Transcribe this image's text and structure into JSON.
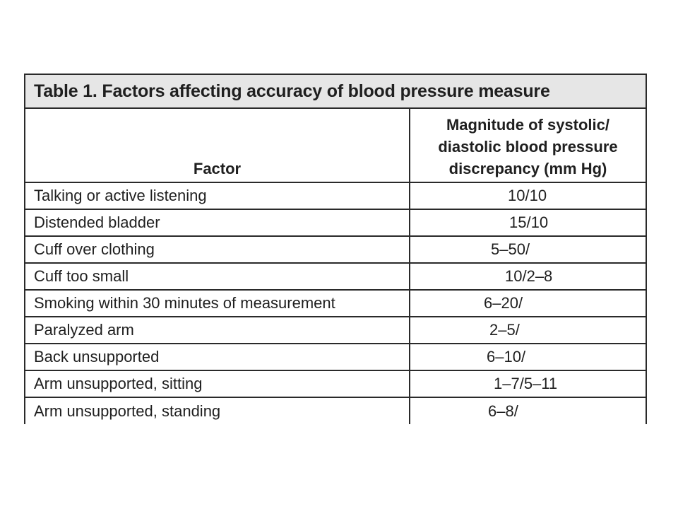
{
  "table": {
    "title": "Table 1. Factors affecting accuracy of blood pressure measure",
    "headers": {
      "factor": "Factor",
      "magnitude_lines": [
        "Magnitude of systolic/",
        "diastolic blood pressure",
        "discrepancy (mm Hg)"
      ]
    },
    "rows": [
      {
        "factor": "Talking or active listening",
        "magnitude": "10/10"
      },
      {
        "factor": "Distended bladder",
        "magnitude": "15/10"
      },
      {
        "factor": "Cuff over clothing",
        "magnitude": "5–50/"
      },
      {
        "factor": "Cuff too small",
        "magnitude": "10/2–8"
      },
      {
        "factor": "Smoking within 30 minutes of measurement",
        "magnitude": "6–20/"
      },
      {
        "factor": "Paralyzed arm",
        "magnitude": "2–5/"
      },
      {
        "factor": "Back unsupported",
        "magnitude": "6–10/"
      },
      {
        "factor": "Arm unsupported, sitting",
        "magnitude": "1–7/5–11"
      },
      {
        "factor": "Arm unsupported, standing",
        "magnitude": "6–8/"
      }
    ]
  }
}
